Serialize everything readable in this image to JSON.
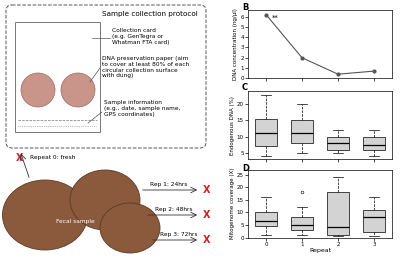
{
  "panel_labels": [
    "B",
    "C",
    "D"
  ],
  "diagram": {
    "title": "Sample collection protocol",
    "collection_card": [
      "Collection card",
      "(e.g. GenTegra or",
      "Whatman FTA card)"
    ],
    "preservation_paper": [
      "DNA preservation paper (aim",
      "to cover at least 80% of each",
      "circular collection surface",
      "with dung)"
    ],
    "sample_information": [
      "Sample information",
      "(e.g., date, sample name,",
      "GPS coordinates)"
    ],
    "mark": "X",
    "fresh": "Repeat 0: fresh",
    "sample": "Fecal sample",
    "repeats": [
      "Rep 1: 24hrs",
      "Rep 2: 48hrs",
      "Rep 3: 72hrs"
    ]
  },
  "chart_data": [
    {
      "type": "line",
      "ylabel": "DNA concentration (ng/µl)",
      "x": [
        0,
        1,
        2,
        3
      ],
      "values": [
        6.2,
        2.0,
        0.4,
        0.7
      ],
      "color": "#555555",
      "marker": "o",
      "annotations": [
        {
          "x": 0,
          "y": 6.2,
          "text": "**"
        }
      ],
      "xlim": [
        -0.5,
        3.5
      ],
      "xticks": [
        0,
        1,
        2,
        3
      ],
      "ylim": [
        0,
        6.6
      ],
      "yticks": [
        0,
        1,
        2,
        3,
        4,
        5,
        6
      ],
      "tick_labels": "y"
    },
    {
      "type": "box",
      "ylabel": "Endogenous DNA (%)",
      "x": [
        0,
        1,
        2,
        3
      ],
      "color": "#d3d3d3",
      "stats": [
        {
          "whislo": 4,
          "q1": 7,
          "med": 11,
          "q3": 15.5,
          "whishi": 23
        },
        {
          "whislo": 5,
          "q1": 8,
          "med": 11,
          "q3": 15,
          "whishi": 20
        },
        {
          "whislo": 5,
          "q1": 6,
          "med": 8,
          "q3": 10,
          "whishi": 12
        },
        {
          "whislo": 4,
          "q1": 6,
          "med": 7.5,
          "q3": 10,
          "whishi": 12
        }
      ],
      "xlim": [
        -0.5,
        3.5
      ],
      "xticks": [
        0,
        1,
        2,
        3
      ],
      "ylim": [
        3,
        24
      ],
      "yticks": [
        5,
        10,
        15,
        20
      ],
      "tick_labels": "y"
    },
    {
      "type": "box",
      "ylabel": "Mitogenome coverage (X)",
      "xlabel": "Repeat",
      "x": [
        0,
        1,
        2,
        3
      ],
      "color": "#d3d3d3",
      "stats": [
        {
          "whislo": 1,
          "q1": 4.5,
          "med": 6.5,
          "q3": 10,
          "whishi": 16
        },
        {
          "whislo": 1,
          "q1": 3,
          "med": 5,
          "q3": 8,
          "whishi": 12,
          "fliers": [
            18
          ]
        },
        {
          "whislo": 0.5,
          "q1": 1,
          "med": 4,
          "q3": 18,
          "whishi": 24
        },
        {
          "whislo": 0.5,
          "q1": 2,
          "med": 8,
          "q3": 11,
          "whishi": 16
        }
      ],
      "xlim": [
        -0.5,
        3.5
      ],
      "xticks": [
        0,
        1,
        2,
        3
      ],
      "ylim": [
        0,
        27
      ],
      "yticks": [
        0,
        5,
        10,
        15,
        20,
        25
      ]
    }
  ]
}
